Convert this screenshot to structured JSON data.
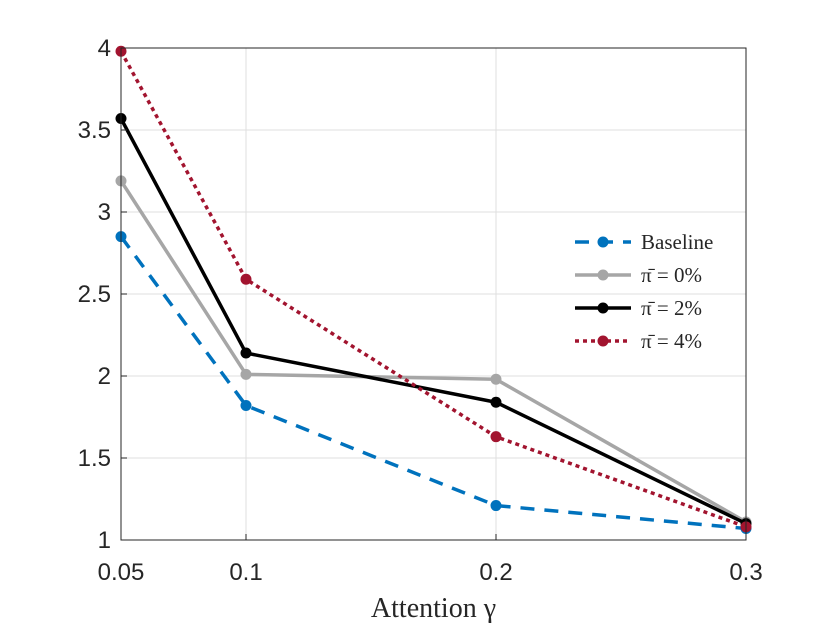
{
  "chart_data": {
    "type": "line",
    "title": "",
    "xlabel": "Attention γ",
    "ylabel": "",
    "xlim": [
      0.05,
      0.3
    ],
    "ylim": [
      1,
      4
    ],
    "grid": true,
    "legend_position": "right",
    "x": [
      0.05,
      0.1,
      0.2,
      0.3
    ],
    "x_ticks": [
      "0.05",
      "0.1",
      "0.2",
      "0.3"
    ],
    "y_ticks": [
      "1",
      "1.5",
      "2",
      "2.5",
      "3",
      "3.5",
      "4"
    ],
    "series": [
      {
        "name": "Baseline",
        "color": "#0072BD",
        "style": "dashed",
        "values": [
          2.85,
          1.82,
          1.21,
          1.07
        ]
      },
      {
        "name": "π̄ = 0%",
        "color": "#A6A6A6",
        "style": "solid",
        "values": [
          3.19,
          2.01,
          1.98,
          1.11
        ]
      },
      {
        "name": "π̄ = 2%",
        "color": "#000000",
        "style": "solid",
        "values": [
          3.57,
          2.14,
          1.84,
          1.1
        ]
      },
      {
        "name": "π̄ = 4%",
        "color": "#A2142F",
        "style": "dotted",
        "values": [
          3.98,
          2.59,
          1.63,
          1.08
        ]
      }
    ]
  }
}
